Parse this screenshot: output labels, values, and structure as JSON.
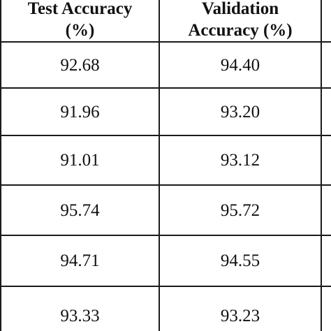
{
  "table": {
    "headers": [
      {
        "line1": "Test Accuracy",
        "line2": "(%)"
      },
      {
        "line1": "Validation",
        "line2": "Accuracy (%)"
      }
    ],
    "rows": [
      {
        "test": "92.68",
        "validation": "94.40"
      },
      {
        "test": "91.96",
        "validation": "93.20"
      },
      {
        "test": "91.01",
        "validation": "93.12"
      },
      {
        "test": "95.74",
        "validation": "95.72"
      },
      {
        "test": "94.71",
        "validation": "94.55"
      },
      {
        "test": "93.33",
        "validation": "93.23"
      }
    ]
  }
}
